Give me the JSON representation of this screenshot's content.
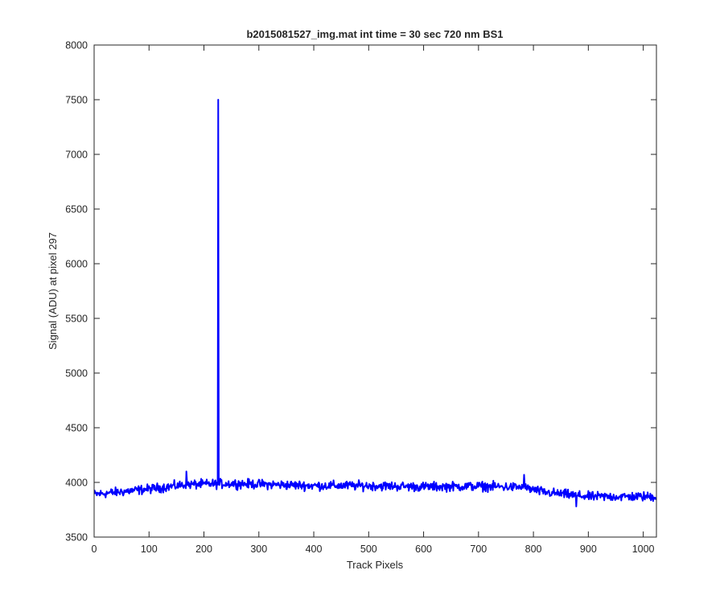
{
  "chart_data": {
    "type": "line",
    "title": "b2015081527_img.mat int time = 30 sec  720 nm BS1",
    "xlabel": "Track Pixels",
    "ylabel": "Signal (ADU) at pixel 297",
    "xlim": [
      0,
      1024
    ],
    "ylim": [
      3500,
      8000
    ],
    "xticks": [
      0,
      100,
      200,
      300,
      400,
      500,
      600,
      700,
      800,
      900,
      1000
    ],
    "yticks": [
      3500,
      4000,
      4500,
      5000,
      5500,
      6000,
      6500,
      7000,
      7500,
      8000
    ],
    "grid": false,
    "legend": "none",
    "series": [
      {
        "color": "#0000ff",
        "baseline_knots": [
          [
            0,
            3890
          ],
          [
            100,
            3940
          ],
          [
            170,
            3980
          ],
          [
            250,
            3990
          ],
          [
            400,
            3970
          ],
          [
            500,
            3970
          ],
          [
            600,
            3960
          ],
          [
            700,
            3965
          ],
          [
            780,
            3955
          ],
          [
            820,
            3910
          ],
          [
            900,
            3870
          ],
          [
            1024,
            3870
          ]
        ],
        "noise_amplitude": 32,
        "spikes": [
          [
            226,
            7500
          ],
          [
            227,
            4020
          ],
          [
            168,
            4100
          ],
          [
            783,
            4070
          ],
          [
            878,
            3780
          ]
        ],
        "x_range": [
          0,
          1024
        ]
      }
    ]
  }
}
